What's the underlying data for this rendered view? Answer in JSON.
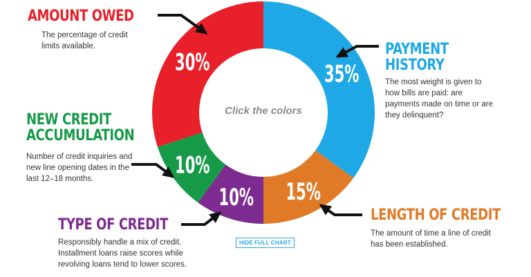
{
  "chart_data": {
    "type": "pie",
    "variant": "donut",
    "center_text": "Click the colors",
    "slices": [
      {
        "name": "PAYMENT HISTORY",
        "value": 35,
        "label": "35%",
        "color": "#1ea8e6",
        "description": "The most weight is given to how bills are paid: are payments made on time or are they delinquent?"
      },
      {
        "name": "LENGTH OF CREDIT",
        "value": 15,
        "label": "15%",
        "color": "#e07a27",
        "description": "The amount of time a line of credit has been established."
      },
      {
        "name": "TYPE OF CREDIT",
        "value": 10,
        "label": "10%",
        "color": "#7d2b90",
        "description": "Responsibly handle a mix of credit. Installment loans raise scores while revolving loans tend to lower scores."
      },
      {
        "name": "NEW CREDIT ACCUMULATION",
        "value": 10,
        "label": "10%",
        "color": "#169a48",
        "description": "Number of credit inquiries and new line opening dates in the last 12–18 months."
      },
      {
        "name": "AMOUNT OWED",
        "value": 30,
        "label": "30%",
        "color": "#e8202a",
        "description": "The percentage of credit limits available."
      }
    ]
  },
  "buttons": {
    "hide_full_chart": "HIDE FULL CHART"
  }
}
